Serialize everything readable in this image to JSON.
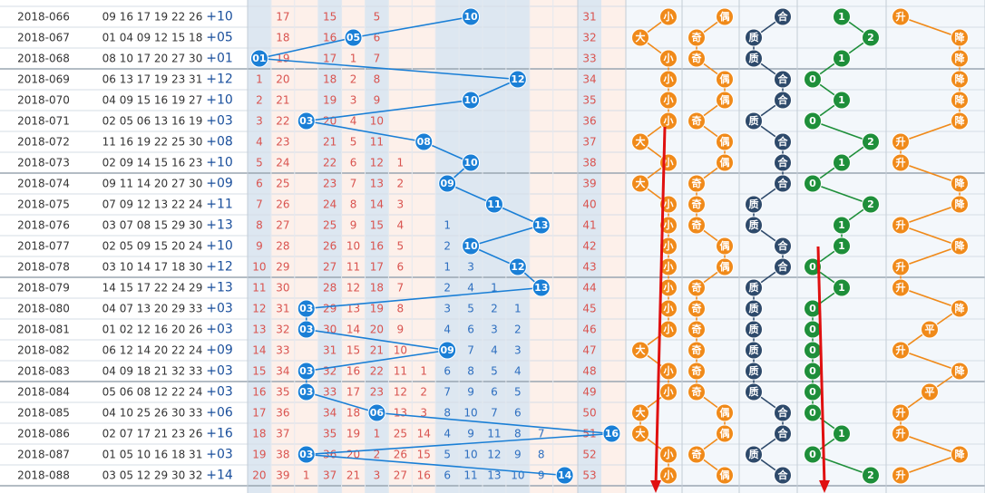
{
  "chart_data": {
    "type": "table",
    "columns": {
      "tail_miss": "trailing-number miss-count columns 01–14",
      "sum_cols": "sum region",
      "size": [
        "大",
        "小"
      ],
      "parity": [
        "奇",
        "偶"
      ],
      "prime": [
        "质",
        "合"
      ],
      "mod3": [
        "0",
        "1",
        "2"
      ],
      "trend": [
        "升",
        "平",
        "降"
      ]
    },
    "rows": [
      {
        "period": "2018-066",
        "numbers": "09 16 17 19 22 26",
        "plus": "+10",
        "special": 10,
        "misses": [
          "",
          "17",
          "",
          "15",
          "",
          "5",
          "",
          "",
          "",
          "",
          "",
          "",
          "",
          ""
        ],
        "sum": "31",
        "size": "小",
        "parity": "偶",
        "prime": "合",
        "mod3": "1",
        "trend": "升"
      },
      {
        "period": "2018-067",
        "numbers": "01 04 09 12 15 18",
        "plus": "+05",
        "special": 5,
        "misses": [
          "",
          "18",
          "",
          "16",
          "",
          "6",
          "",
          "",
          "",
          "",
          "",
          "",
          "",
          ""
        ],
        "sum": "32",
        "size": "大",
        "parity": "奇",
        "prime": "质",
        "mod3": "2",
        "trend": "降"
      },
      {
        "period": "2018-068",
        "numbers": "08 10 17 20 27 30",
        "plus": "+01",
        "special": 1,
        "misses": [
          "",
          "19",
          "",
          "17",
          "1",
          "7",
          "",
          "",
          "",
          "",
          "",
          "",
          "",
          ""
        ],
        "sum": "33",
        "size": "小",
        "parity": "奇",
        "prime": "质",
        "mod3": "1",
        "trend": "降"
      },
      {
        "period": "2018-069",
        "numbers": "06 13 17 19 23 31",
        "plus": "+12",
        "special": 12,
        "misses": [
          "1",
          "20",
          "",
          "18",
          "2",
          "8",
          "",
          "",
          "",
          "",
          "",
          "",
          "",
          ""
        ],
        "sum": "34",
        "size": "小",
        "parity": "偶",
        "prime": "合",
        "mod3": "0",
        "trend": "降"
      },
      {
        "period": "2018-070",
        "numbers": "04 09 15 16 19 27",
        "plus": "+10",
        "special": 10,
        "misses": [
          "2",
          "21",
          "",
          "19",
          "3",
          "9",
          "",
          "",
          "",
          "",
          "",
          "",
          "",
          ""
        ],
        "sum": "35",
        "size": "小",
        "parity": "偶",
        "prime": "合",
        "mod3": "1",
        "trend": "降"
      },
      {
        "period": "2018-071",
        "numbers": "02 05 06 13 16 19",
        "plus": "+03",
        "special": 3,
        "misses": [
          "3",
          "22",
          "",
          "20",
          "4",
          "10",
          "",
          "",
          "",
          "",
          "",
          "",
          "",
          ""
        ],
        "sum": "36",
        "size": "小",
        "parity": "奇",
        "prime": "质",
        "mod3": "0",
        "trend": "降"
      },
      {
        "period": "2018-072",
        "numbers": "11 16 19 22 25 30",
        "plus": "+08",
        "special": 8,
        "misses": [
          "4",
          "23",
          "",
          "21",
          "5",
          "11",
          "",
          "",
          "",
          "",
          "",
          "",
          "",
          ""
        ],
        "sum": "37",
        "size": "大",
        "parity": "偶",
        "prime": "合",
        "mod3": "2",
        "trend": "升"
      },
      {
        "period": "2018-073",
        "numbers": "02 09 14 15 16 23",
        "plus": "+10",
        "special": 10,
        "misses": [
          "5",
          "24",
          "",
          "22",
          "6",
          "12",
          "1",
          "",
          "",
          "",
          "",
          "",
          "",
          ""
        ],
        "sum": "38",
        "size": "小",
        "parity": "偶",
        "prime": "合",
        "mod3": "1",
        "trend": "升"
      },
      {
        "period": "2018-074",
        "numbers": "09 11 14 20 27 30",
        "plus": "+09",
        "special": 9,
        "misses": [
          "6",
          "25",
          "",
          "23",
          "7",
          "13",
          "2",
          "",
          "",
          "",
          "",
          "",
          "",
          ""
        ],
        "sum": "39",
        "size": "大",
        "parity": "奇",
        "prime": "合",
        "mod3": "0",
        "trend": "降"
      },
      {
        "period": "2018-075",
        "numbers": "07 09 12 13 22 24",
        "plus": "+11",
        "special": 11,
        "misses": [
          "7",
          "26",
          "",
          "24",
          "8",
          "14",
          "3",
          "",
          "",
          "",
          "",
          "",
          "",
          ""
        ],
        "sum": "40",
        "size": "小",
        "parity": "奇",
        "prime": "质",
        "mod3": "2",
        "trend": "降"
      },
      {
        "period": "2018-076",
        "numbers": "03 07 08 15 29 30",
        "plus": "+13",
        "special": 13,
        "misses": [
          "8",
          "27",
          "",
          "25",
          "9",
          "15",
          "4",
          "",
          "1",
          "",
          "",
          "",
          "",
          ""
        ],
        "sum": "41",
        "size": "小",
        "parity": "奇",
        "prime": "质",
        "mod3": "1",
        "trend": "升"
      },
      {
        "period": "2018-077",
        "numbers": "02 05 09 15 20 24",
        "plus": "+10",
        "special": 10,
        "misses": [
          "9",
          "28",
          "",
          "26",
          "10",
          "16",
          "5",
          "",
          "2",
          "",
          "",
          "",
          "",
          ""
        ],
        "sum": "42",
        "size": "小",
        "parity": "偶",
        "prime": "合",
        "mod3": "1",
        "trend": "降"
      },
      {
        "period": "2018-078",
        "numbers": "03 10 14 17 18 30",
        "plus": "+12",
        "special": 12,
        "misses": [
          "10",
          "29",
          "",
          "27",
          "11",
          "17",
          "6",
          "",
          "1",
          "3",
          "",
          "",
          "",
          ""
        ],
        "sum": "43",
        "size": "小",
        "parity": "偶",
        "prime": "合",
        "mod3": "0",
        "trend": "升"
      },
      {
        "period": "2018-079",
        "numbers": "14 15 17 22 24 29",
        "plus": "+13",
        "special": 13,
        "misses": [
          "11",
          "30",
          "",
          "28",
          "12",
          "18",
          "7",
          "",
          "2",
          "4",
          "1",
          "",
          "",
          ""
        ],
        "sum": "44",
        "size": "小",
        "parity": "奇",
        "prime": "质",
        "mod3": "1",
        "trend": "升"
      },
      {
        "period": "2018-080",
        "numbers": "04 07 13 20 29 33",
        "plus": "+03",
        "special": 3,
        "misses": [
          "12",
          "31",
          "",
          "29",
          "13",
          "19",
          "8",
          "",
          "3",
          "5",
          "2",
          "1",
          "",
          ""
        ],
        "sum": "45",
        "size": "小",
        "parity": "奇",
        "prime": "质",
        "mod3": "0",
        "trend": "降"
      },
      {
        "period": "2018-081",
        "numbers": "01 02 12 16 20 26",
        "plus": "+03",
        "special": 3,
        "misses": [
          "13",
          "32",
          "",
          "30",
          "14",
          "20",
          "9",
          "",
          "4",
          "6",
          "3",
          "2",
          "",
          ""
        ],
        "sum": "46",
        "size": "小",
        "parity": "奇",
        "prime": "质",
        "mod3": "0",
        "trend": "平"
      },
      {
        "period": "2018-082",
        "numbers": "06 12 14 20 22 24",
        "plus": "+09",
        "special": 9,
        "misses": [
          "14",
          "33",
          "",
          "31",
          "15",
          "21",
          "10",
          "",
          "5",
          "7",
          "4",
          "3",
          "",
          ""
        ],
        "sum": "47",
        "size": "大",
        "parity": "奇",
        "prime": "质",
        "mod3": "0",
        "trend": "升"
      },
      {
        "period": "2018-083",
        "numbers": "04 09 18 21 32 33",
        "plus": "+03",
        "special": 3,
        "misses": [
          "15",
          "34",
          "",
          "32",
          "16",
          "22",
          "11",
          "1",
          "6",
          "8",
          "5",
          "4",
          "",
          ""
        ],
        "sum": "48",
        "size": "小",
        "parity": "奇",
        "prime": "质",
        "mod3": "0",
        "trend": "降"
      },
      {
        "period": "2018-084",
        "numbers": "05 06 08 12 22 24",
        "plus": "+03",
        "special": 3,
        "misses": [
          "16",
          "35",
          "",
          "33",
          "17",
          "23",
          "12",
          "2",
          "7",
          "9",
          "6",
          "5",
          "",
          ""
        ],
        "sum": "49",
        "size": "小",
        "parity": "奇",
        "prime": "质",
        "mod3": "0",
        "trend": "平"
      },
      {
        "period": "2018-085",
        "numbers": "04 10 25 26 30 33",
        "plus": "+06",
        "special": 6,
        "misses": [
          "17",
          "36",
          "",
          "34",
          "18",
          "24",
          "13",
          "3",
          "8",
          "10",
          "7",
          "6",
          "",
          ""
        ],
        "sum": "50",
        "size": "大",
        "parity": "偶",
        "prime": "合",
        "mod3": "0",
        "trend": "升"
      },
      {
        "period": "2018-086",
        "numbers": "02 07 17 21 23 26",
        "plus": "+16",
        "special": 16,
        "misses": [
          "18",
          "37",
          "",
          "35",
          "19",
          "1",
          "25",
          "14",
          "4",
          "9",
          "11",
          "8",
          "7",
          ""
        ],
        "sum": "51",
        "size": "大",
        "parity": "偶",
        "prime": "合",
        "mod3": "1",
        "trend": "升"
      },
      {
        "period": "2018-087",
        "numbers": "01 05 10 16 18 31",
        "plus": "+03",
        "special": 3,
        "misses": [
          "19",
          "38",
          "",
          "36",
          "20",
          "2",
          "26",
          "15",
          "5",
          "10",
          "12",
          "9",
          "8",
          ""
        ],
        "sum": "52",
        "size": "小",
        "parity": "奇",
        "prime": "质",
        "mod3": "0",
        "trend": "降"
      },
      {
        "period": "2018-088",
        "numbers": "03 05 12 29 30 32",
        "plus": "+14",
        "special": 14,
        "misses": [
          "20",
          "39",
          "1",
          "37",
          "21",
          "3",
          "27",
          "16",
          "6",
          "11",
          "13",
          "10",
          "9",
          ""
        ],
        "sum": "53",
        "size": "小",
        "parity": "偶",
        "prime": "合",
        "mod3": "2",
        "trend": "升"
      }
    ],
    "colors": {
      "special_ball": "#1a7fd6",
      "orange_ball": "#f08a1a",
      "navy_ball": "#2e4a6b",
      "green_ball": "#1e8f3a",
      "miss_text": "#d9534f",
      "arrow": "#e01010"
    }
  }
}
